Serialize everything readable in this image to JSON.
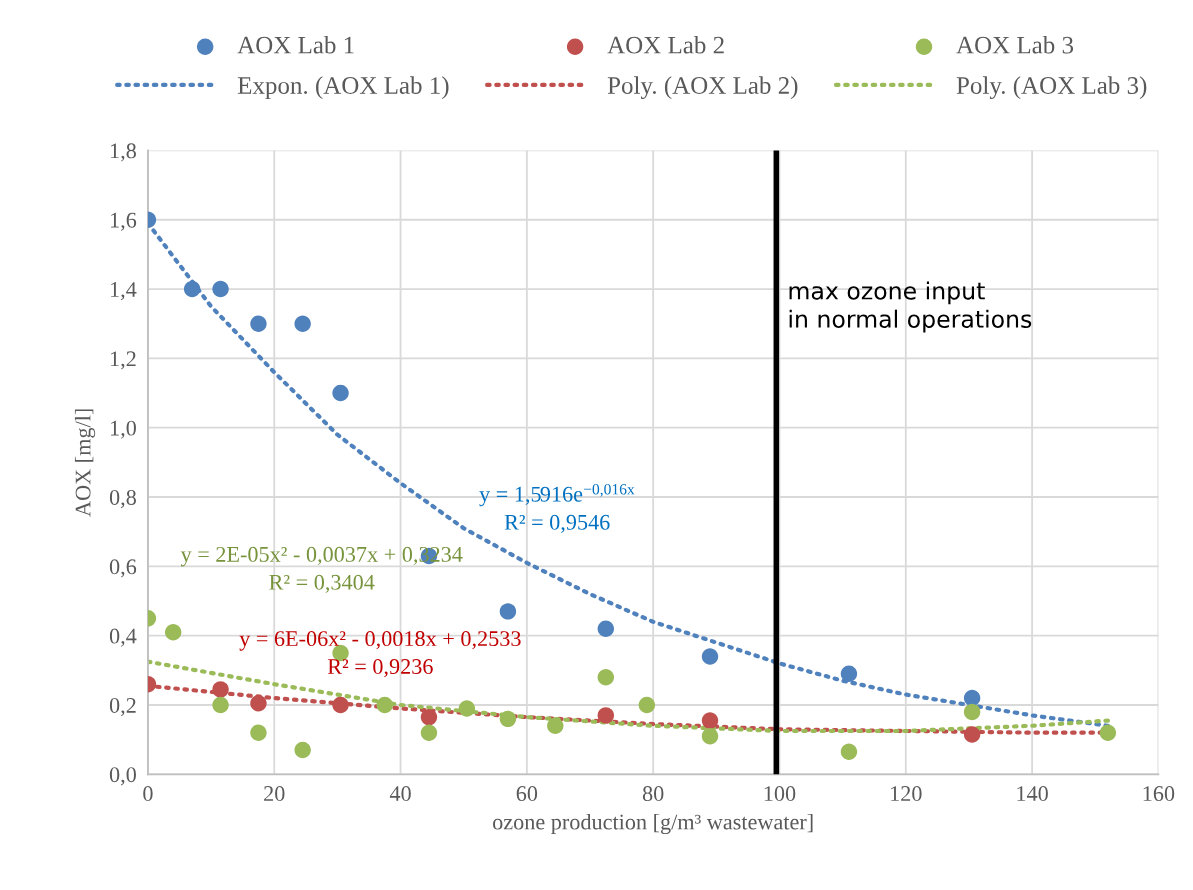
{
  "chart_data": {
    "type": "scatter",
    "xlabel": "ozone production [g/m³ wastewater]",
    "ylabel": "AOX [mg/l]",
    "xlim": [
      0,
      160
    ],
    "xticks": [
      0,
      20,
      40,
      60,
      80,
      100,
      120,
      140,
      160
    ],
    "ylim": [
      0,
      1.8
    ],
    "yticks": [
      {
        "value": 0,
        "label": "0,0"
      },
      {
        "value": 0.2,
        "label": "0,2"
      },
      {
        "value": 0.4,
        "label": "0,4"
      },
      {
        "value": 0.6,
        "label": "0,6"
      },
      {
        "value": 0.8,
        "label": "0,8"
      },
      {
        "value": 1.0,
        "label": "1,0"
      },
      {
        "value": 1.2,
        "label": "1,2"
      },
      {
        "value": 1.4,
        "label": "1,4"
      },
      {
        "value": 1.6,
        "label": "1,6"
      },
      {
        "value": 1.8,
        "label": "1,8"
      }
    ],
    "grid": true,
    "legend": "top",
    "marker": "circle",
    "series": [
      {
        "name": "AOX Lab 1",
        "color": "#4f81bd",
        "x": [
          0,
          7,
          11.5,
          17.5,
          24.5,
          30.5,
          44.5,
          57,
          72.5,
          89,
          111,
          130.5
        ],
        "values": [
          1.6,
          1.4,
          1.4,
          1.3,
          1.3,
          1.1,
          0.63,
          0.47,
          0.42,
          0.34,
          0.29,
          0.22
        ]
      },
      {
        "name": "Expon. (AOX Lab 1)",
        "color": "#4f81bd",
        "type": "line",
        "line_style": "dotted",
        "marker": "none",
        "x": [
          0,
          10,
          20,
          30,
          40,
          50,
          60,
          70,
          80,
          90,
          100,
          110,
          120,
          130,
          140,
          152
        ],
        "values": [
          1.59,
          1.35,
          1.16,
          0.98,
          0.84,
          0.71,
          0.61,
          0.52,
          0.44,
          0.38,
          0.32,
          0.27,
          0.23,
          0.2,
          0.17,
          0.14
        ]
      },
      {
        "name": "AOX Lab 2",
        "color": "#c0504d",
        "x": [
          0,
          11.5,
          17.5,
          30.5,
          44.5,
          57,
          72.5,
          89,
          130.5
        ],
        "values": [
          0.26,
          0.245,
          0.205,
          0.2,
          0.165,
          null,
          0.17,
          0.155,
          0.115
        ]
      },
      {
        "name": "Poly. (AOX Lab 2)",
        "color": "#c0504d",
        "type": "line",
        "line_style": "dotted",
        "marker": "none",
        "x": [
          0,
          20,
          40,
          60,
          80,
          100,
          120,
          140,
          152
        ],
        "values": [
          0.255,
          0.22,
          0.19,
          0.165,
          0.145,
          0.13,
          0.125,
          0.12,
          0.12
        ]
      },
      {
        "name": "AOX Lab 3",
        "color": "#9bbb59",
        "x": [
          0,
          4,
          11.5,
          17.5,
          24.5,
          30.5,
          37.5,
          44.5,
          50.5,
          57,
          64.5,
          72.5,
          79,
          89,
          111,
          130.5,
          152
        ],
        "values": [
          0.45,
          0.41,
          0.2,
          0.12,
          0.07,
          0.35,
          0.2,
          0.12,
          0.19,
          0.16,
          0.14,
          0.28,
          0.2,
          0.11,
          0.065,
          0.18,
          0.12
        ]
      },
      {
        "name": "Poly. (AOX Lab 3)",
        "color": "#9bbb59",
        "type": "line",
        "line_style": "dotted",
        "marker": "none",
        "x": [
          0,
          20,
          40,
          60,
          80,
          100,
          120,
          140,
          152
        ],
        "values": [
          0.325,
          0.26,
          0.2,
          0.165,
          0.14,
          0.125,
          0.125,
          0.14,
          0.155
        ]
      }
    ],
    "ref_lines": [
      {
        "axis": "x",
        "value": 99.5,
        "label": "max ozone input\nin normal operations",
        "color": "#000000",
        "line_style": "solid"
      }
    ],
    "annotations": [
      "y = 1,5916e$^{−0,016x}$\nR² = 0,9546",
      "y = 2E-05x² - 0,0037x + 0,3234\nR² = 0,3404",
      "y = 6E-06x² - 0,0018x + 0,2533\nR² = 0,9236"
    ]
  }
}
